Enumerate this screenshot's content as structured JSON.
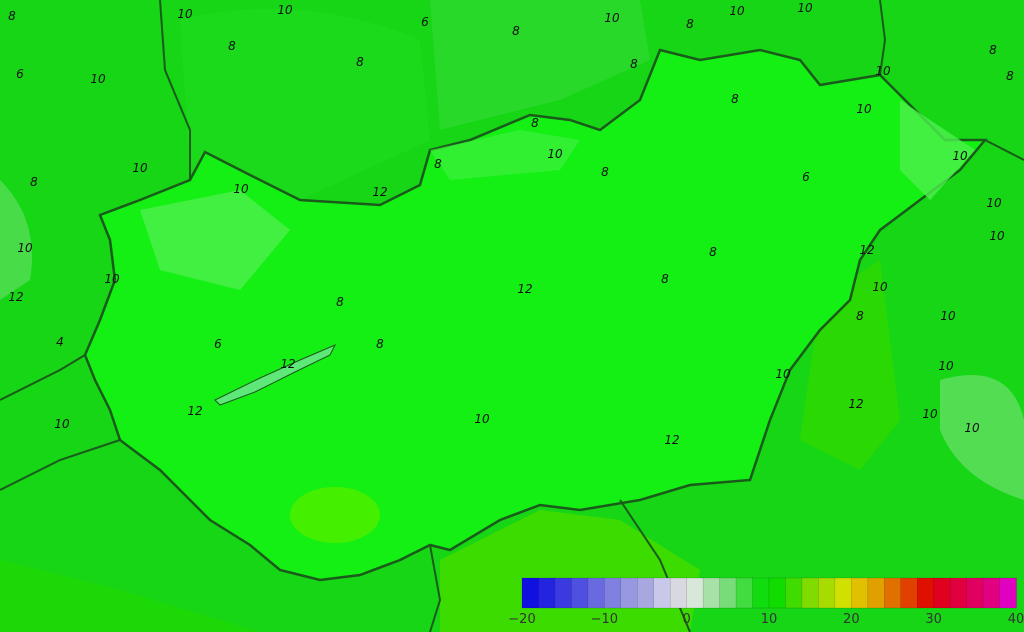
{
  "map": {
    "background_color": "#16d616",
    "country_fill": "#14f014",
    "contour_labels": [
      "8",
      "10",
      "10",
      "8",
      "6",
      "10",
      "8",
      "6",
      "8",
      "10",
      "8",
      "10",
      "10",
      "8",
      "8",
      "10",
      "8",
      "8",
      "10",
      "8",
      "10",
      "8",
      "8",
      "10",
      "10",
      "10",
      "12",
      "6",
      "10",
      "8",
      "10",
      "10",
      "8",
      "12",
      "10",
      "12",
      "8",
      "10",
      "12",
      "8",
      "8",
      "10",
      "4",
      "6",
      "8",
      "12",
      "10",
      "10",
      "12",
      "12",
      "10",
      "10",
      "12",
      "10",
      "10"
    ]
  },
  "colorbar": {
    "min": -20,
    "max": 40,
    "step": 2,
    "colors": [
      "#1010e0",
      "#2424e0",
      "#3a3ae0",
      "#5050e0",
      "#6a6ae0",
      "#8080e0",
      "#9898e0",
      "#a8a8e0",
      "#c8c8e8",
      "#d8d8e0",
      "#d8e8d8",
      "#a8e0a8",
      "#78dc78",
      "#40dc40",
      "#10dc10",
      "#10dc00",
      "#40dc00",
      "#80dc00",
      "#a8dc00",
      "#d0e000",
      "#e0c000",
      "#e0a000",
      "#e07000",
      "#e04000",
      "#e01000",
      "#e00020",
      "#e00040",
      "#e00060",
      "#e00080",
      "#e000c0"
    ],
    "tick_labels": [
      "−20",
      "−10",
      "0",
      "10",
      "20",
      "30",
      "40"
    ]
  }
}
